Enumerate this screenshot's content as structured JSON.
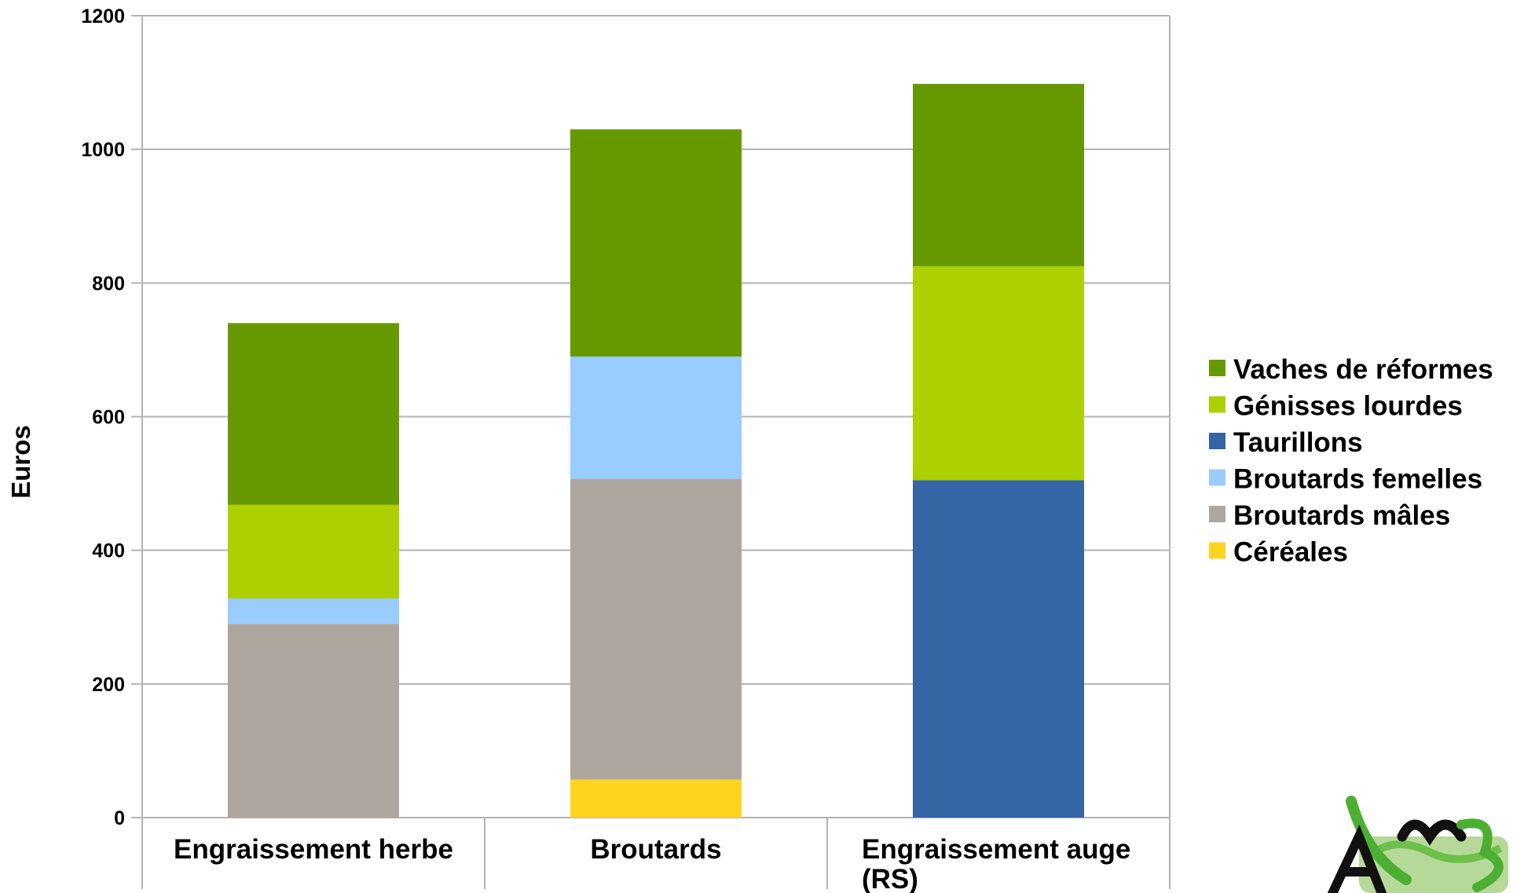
{
  "chart_data": {
    "type": "bar",
    "stacked": true,
    "categories": [
      "Engraissement herbe",
      "Broutards",
      "Engraissement auge (RS)"
    ],
    "ylabel": "Euros",
    "ylim": [
      0,
      1200
    ],
    "yticks": [
      0,
      200,
      400,
      600,
      800,
      1000,
      1200
    ],
    "grid": true,
    "legend_position": "right",
    "series": [
      {
        "name": "Céréales",
        "color": "#ffd320",
        "values": [
          0,
          57,
          0
        ]
      },
      {
        "name": "Broutards mâles",
        "color": "#aea79f",
        "values": [
          290,
          450,
          0
        ]
      },
      {
        "name": "Broutards femelles",
        "color": "#99ccff",
        "values": [
          38,
          183,
          0
        ]
      },
      {
        "name": "Taurillons",
        "color": "#3465a4",
        "values": [
          0,
          0,
          505
        ]
      },
      {
        "name": "Génisses lourdes",
        "color": "#acd000",
        "values": [
          140,
          0,
          320
        ]
      },
      {
        "name": "Vaches de réformes",
        "color": "#669900",
        "values": [
          272,
          340,
          273
        ]
      }
    ],
    "legend_order": [
      "Vaches de réformes",
      "Génisses lourdes",
      "Taurillons",
      "Broutards femelles",
      "Broutards mâles",
      "Céréales"
    ],
    "category_lines": [
      [
        "Engraissement herbe"
      ],
      [
        "Broutards"
      ],
      [
        "Engraissement auge",
        "(RS)"
      ]
    ]
  },
  "logo": {
    "text": "ADM3",
    "colors": {
      "ink": "#111111",
      "green": "#4caf32",
      "light_green": "#b6d99a"
    }
  }
}
